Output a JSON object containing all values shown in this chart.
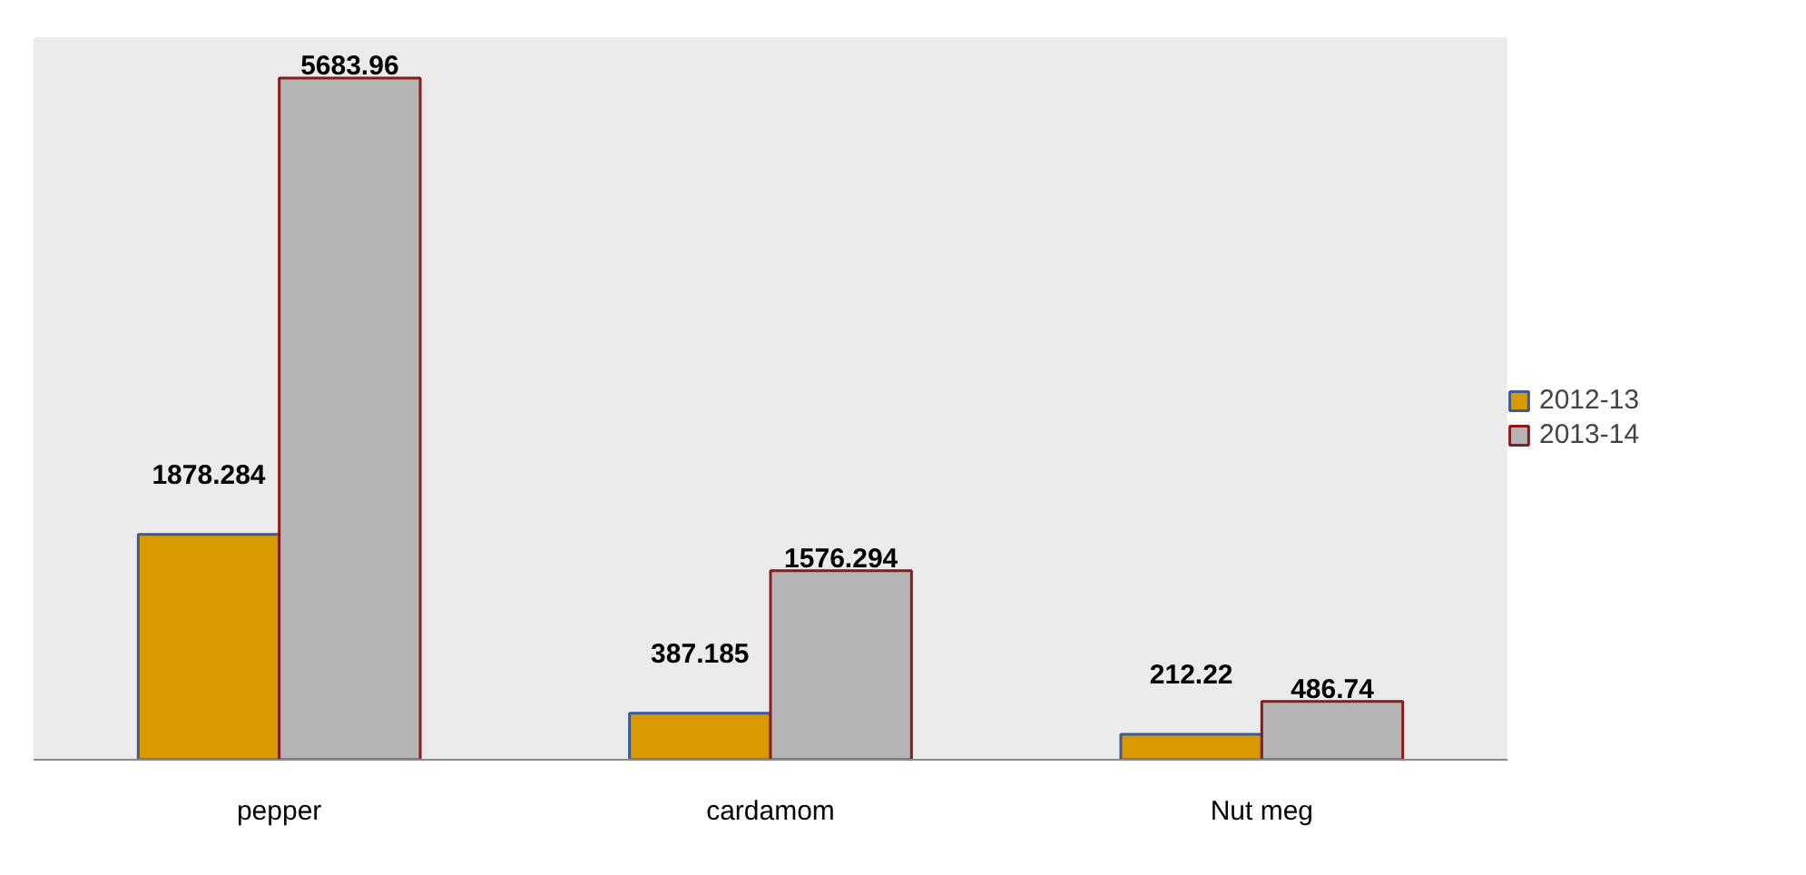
{
  "chart_data": {
    "type": "bar",
    "categories": [
      "pepper",
      "cardamom",
      "Nut meg"
    ],
    "series": [
      {
        "name": "2012-13",
        "color": "#d99a00",
        "values": [
          1878.284,
          387.185,
          212.22
        ]
      },
      {
        "name": "2013-14",
        "color": "#b4b4b4",
        "values": [
          5683.96,
          1576.294,
          486.74
        ]
      }
    ],
    "data_labels": true,
    "legend": "right",
    "grid": false
  }
}
